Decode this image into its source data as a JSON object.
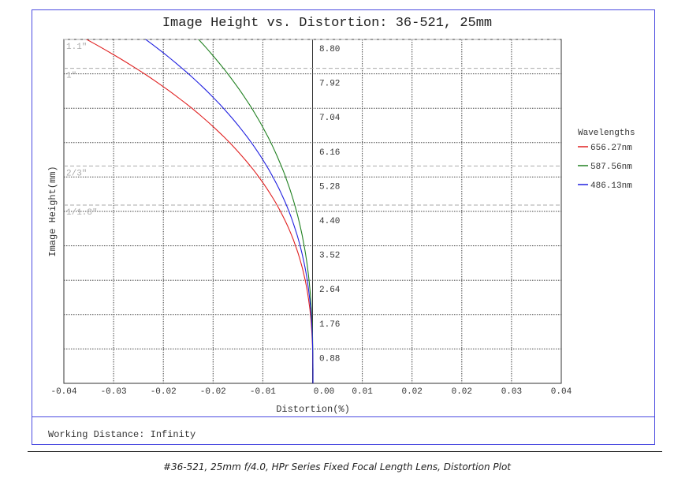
{
  "chart_data": {
    "type": "line",
    "title": "Image Height vs. Distortion: 36-521, 25mm",
    "xlabel": "Distortion(%)",
    "ylabel": "Image Height(mm)",
    "xlim": [
      -0.04,
      0.04
    ],
    "ylim": [
      0,
      8.8
    ],
    "x_ticks": [
      "-0.04",
      "-0.03",
      "-0.02",
      "-0.02",
      "-0.01",
      "0.00",
      "0.01",
      "0.02",
      "0.02",
      "0.03",
      "0.04"
    ],
    "y_ticks": [
      "0.88",
      "1.76",
      "2.64",
      "3.52",
      "4.40",
      "5.28",
      "6.16",
      "7.04",
      "7.92",
      "8.80"
    ],
    "grid": true,
    "legend": {
      "title": "Wavelengths",
      "placement": "right"
    },
    "sensor_lines": [
      {
        "label": "1.1\"",
        "height": 8.8
      },
      {
        "label": "1\"",
        "height": 8.0
      },
      {
        "label": "2/3\"",
        "height": 5.5
      },
      {
        "label": "1/1.8\"",
        "height": 4.5
      }
    ],
    "series": [
      {
        "name": "656.27nm",
        "color": "#e02020",
        "height": [
          0,
          0.88,
          1.76,
          2.64,
          3.52,
          4.4,
          5.28,
          6.16,
          7.04,
          7.92,
          8.8
        ],
        "distortion": [
          0,
          -6e-05,
          -0.0004,
          -0.00125,
          -0.0028,
          -0.00525,
          -0.0087,
          -0.0134,
          -0.0195,
          -0.0272,
          -0.0364
        ]
      },
      {
        "name": "587.56nm",
        "color": "#208020",
        "height": [
          0,
          0.88,
          1.76,
          2.64,
          3.52,
          4.4,
          5.28,
          6.16,
          7.04,
          7.92,
          8.8
        ],
        "distortion": [
          0,
          -3e-05,
          -0.0002,
          -0.00063,
          -0.00142,
          -0.00265,
          -0.0044,
          -0.00677,
          -0.00985,
          -0.01375,
          -0.0184
        ]
      },
      {
        "name": "486.13nm",
        "color": "#2020e0",
        "height": [
          0,
          0.88,
          1.76,
          2.64,
          3.52,
          4.4,
          5.28,
          6.16,
          7.04,
          7.92,
          8.8
        ],
        "distortion": [
          0,
          -4e-05,
          -0.0003,
          -0.00092,
          -0.00207,
          -0.00388,
          -0.00643,
          -0.0099,
          -0.0144,
          -0.0201,
          -0.0269
        ]
      }
    ]
  },
  "footer": {
    "working_distance": "Working Distance: Infinity",
    "caption": "#36-521, 25mm f/4.0, HPr Series Fixed Focal Length Lens, Distortion Plot"
  }
}
